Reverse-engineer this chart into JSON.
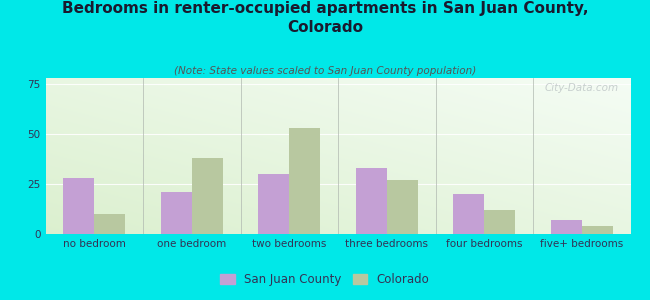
{
  "title": "Bedrooms in renter-occupied apartments in San Juan County,\nColorado",
  "subtitle": "(Note: State values scaled to San Juan County population)",
  "categories": [
    "no bedroom",
    "one bedroom",
    "two bedrooms",
    "three bedrooms",
    "four bedrooms",
    "five+ bedrooms"
  ],
  "san_juan_values": [
    28,
    21,
    30,
    33,
    20,
    7
  ],
  "colorado_values": [
    10,
    38,
    53,
    27,
    12,
    4
  ],
  "san_juan_color": "#c4a0d4",
  "colorado_color": "#b8c8a0",
  "background_color": "#00e8e8",
  "ylim": [
    0,
    78
  ],
  "yticks": [
    0,
    25,
    50,
    75
  ],
  "bar_width": 0.32,
  "title_fontsize": 11,
  "subtitle_fontsize": 7.5,
  "tick_fontsize": 7.5,
  "legend_fontsize": 8.5,
  "title_color": "#1a1a2e",
  "subtitle_color": "#555555",
  "tick_color": "#333355",
  "watermark": "City-Data.com",
  "legend_labels": [
    "San Juan County",
    "Colorado"
  ]
}
